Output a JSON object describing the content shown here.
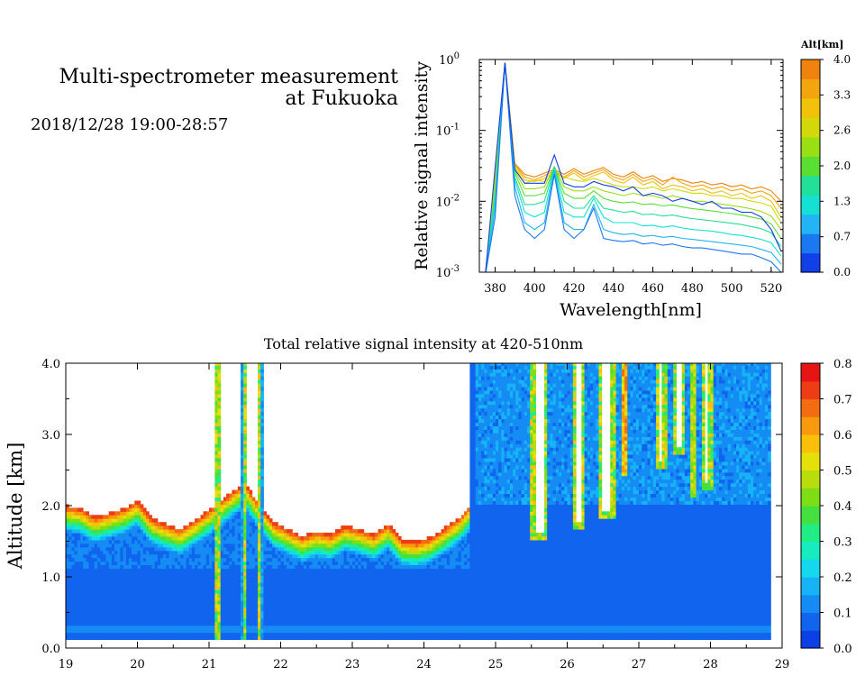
{
  "header": {
    "title_line1": "Multi-spectrometer measurement",
    "title_line2": "at Fukuoka",
    "date_range": "2018/12/28 19:00-28:57"
  },
  "chart_data": [
    {
      "type": "line",
      "xlabel": "Wavelength[nm]",
      "ylabel": "Relative signal intensity",
      "xlim": [
        372,
        526
      ],
      "ylim": [
        0.001,
        1
      ],
      "yscale": "log",
      "x_ticks": [
        "380",
        "400",
        "420",
        "440",
        "460",
        "480",
        "500",
        "520"
      ],
      "y_tick_mantissa": [
        "10",
        "10",
        "10",
        "10"
      ],
      "y_tick_exponent": [
        "-3",
        "-2",
        "-1",
        "0"
      ],
      "colorbar": {
        "title": "Alt[km]",
        "ticks": [
          "0.0",
          "0.7",
          "1.3",
          "2.0",
          "2.6",
          "3.3",
          "4.0"
        ],
        "colors": [
          "#1240e8",
          "#1a78f0",
          "#22b4f4",
          "#14e0d4",
          "#22e098",
          "#5ade32",
          "#9ade14",
          "#d2d80a",
          "#f0c20a",
          "#f4a40c",
          "#f0820e"
        ]
      },
      "x": [
        375,
        380,
        385,
        390,
        395,
        400,
        405,
        410,
        415,
        420,
        425,
        430,
        435,
        440,
        445,
        450,
        455,
        460,
        465,
        470,
        475,
        480,
        485,
        490,
        495,
        500,
        505,
        510,
        515,
        520,
        525
      ],
      "series": [
        {
          "color": "#1240e8",
          "values": [
            0.0009,
            0.03,
            0.9,
            0.028,
            0.018,
            0.018,
            0.018,
            0.045,
            0.018,
            0.016,
            0.016,
            0.019,
            0.017,
            0.016,
            0.014,
            0.016,
            0.012,
            0.013,
            0.012,
            0.01,
            0.011,
            0.01,
            0.009,
            0.01,
            0.008,
            0.008,
            0.007,
            0.007,
            0.006,
            0.004,
            0.002
          ]
        },
        {
          "color": "#1a78f0",
          "values": [
            0.0009,
            0.006,
            0.9,
            0.012,
            0.004,
            0.003,
            0.004,
            0.024,
            0.004,
            0.003,
            0.004,
            0.008,
            0.003,
            0.0028,
            0.0027,
            0.0028,
            0.0025,
            0.0026,
            0.0024,
            0.0025,
            0.0023,
            0.0022,
            0.0022,
            0.0021,
            0.002,
            0.0019,
            0.0018,
            0.0018,
            0.0016,
            0.0014,
            0.001
          ]
        },
        {
          "color": "#22b4f4",
          "values": [
            0.0009,
            0.008,
            0.9,
            0.016,
            0.005,
            0.004,
            0.005,
            0.027,
            0.005,
            0.004,
            0.004,
            0.009,
            0.004,
            0.0036,
            0.0034,
            0.0035,
            0.0032,
            0.0033,
            0.0031,
            0.0032,
            0.003,
            0.0029,
            0.0028,
            0.0027,
            0.0026,
            0.0025,
            0.0024,
            0.0023,
            0.0021,
            0.0019,
            0.0013
          ]
        },
        {
          "color": "#14e0d4",
          "values": [
            0.0009,
            0.01,
            0.9,
            0.02,
            0.007,
            0.006,
            0.007,
            0.029,
            0.007,
            0.006,
            0.006,
            0.011,
            0.006,
            0.005,
            0.005,
            0.005,
            0.0045,
            0.0046,
            0.0043,
            0.0045,
            0.0042,
            0.004,
            0.0039,
            0.0038,
            0.0036,
            0.0034,
            0.0033,
            0.0031,
            0.0029,
            0.0026,
            0.0017
          ]
        },
        {
          "color": "#22e098",
          "values": [
            0.0009,
            0.012,
            0.9,
            0.022,
            0.009,
            0.009,
            0.01,
            0.03,
            0.01,
            0.008,
            0.008,
            0.012,
            0.008,
            0.0075,
            0.007,
            0.0072,
            0.0065,
            0.0066,
            0.0062,
            0.0064,
            0.006,
            0.0057,
            0.0055,
            0.0053,
            0.0051,
            0.0049,
            0.0047,
            0.0044,
            0.0041,
            0.0036,
            0.0023
          ]
        },
        {
          "color": "#5ade32",
          "values": [
            0.0009,
            0.014,
            0.9,
            0.025,
            0.012,
            0.012,
            0.013,
            0.03,
            0.013,
            0.011,
            0.011,
            0.014,
            0.011,
            0.01,
            0.0095,
            0.0098,
            0.009,
            0.0092,
            0.0086,
            0.0089,
            0.0083,
            0.0079,
            0.0076,
            0.0073,
            0.007,
            0.0067,
            0.0064,
            0.006,
            0.0056,
            0.0048,
            0.003
          ]
        },
        {
          "color": "#9ade14",
          "values": [
            0.0009,
            0.016,
            0.9,
            0.027,
            0.015,
            0.015,
            0.016,
            0.031,
            0.016,
            0.014,
            0.014,
            0.016,
            0.014,
            0.013,
            0.012,
            0.013,
            0.012,
            0.012,
            0.011,
            0.012,
            0.011,
            0.01,
            0.01,
            0.0095,
            0.0091,
            0.0087,
            0.0083,
            0.0078,
            0.0072,
            0.0062,
            0.004
          ]
        },
        {
          "color": "#d2d80a",
          "values": [
            0.0009,
            0.018,
            0.9,
            0.03,
            0.018,
            0.02,
            0.019,
            0.025,
            0.022,
            0.02,
            0.019,
            0.021,
            0.019,
            0.017,
            0.016,
            0.016,
            0.015,
            0.016,
            0.014,
            0.015,
            0.014,
            0.013,
            0.013,
            0.012,
            0.012,
            0.011,
            0.011,
            0.01,
            0.0095,
            0.0085,
            0.005
          ]
        },
        {
          "color": "#f0c20a",
          "values": [
            0.0009,
            0.02,
            0.9,
            0.032,
            0.02,
            0.019,
            0.021,
            0.026,
            0.021,
            0.025,
            0.02,
            0.023,
            0.026,
            0.02,
            0.018,
            0.022,
            0.017,
            0.019,
            0.015,
            0.017,
            0.016,
            0.014,
            0.015,
            0.013,
            0.014,
            0.012,
            0.013,
            0.011,
            0.012,
            0.01,
            0.006
          ]
        },
        {
          "color": "#f4a40c",
          "values": [
            0.0009,
            0.022,
            0.9,
            0.033,
            0.022,
            0.02,
            0.023,
            0.027,
            0.022,
            0.027,
            0.022,
            0.025,
            0.028,
            0.022,
            0.02,
            0.024,
            0.019,
            0.021,
            0.017,
            0.022,
            0.018,
            0.016,
            0.017,
            0.015,
            0.016,
            0.014,
            0.015,
            0.013,
            0.014,
            0.012,
            0.008
          ]
        },
        {
          "color": "#f0820e",
          "values": [
            0.0009,
            0.024,
            0.9,
            0.034,
            0.024,
            0.022,
            0.025,
            0.028,
            0.024,
            0.029,
            0.024,
            0.027,
            0.03,
            0.024,
            0.022,
            0.026,
            0.021,
            0.023,
            0.019,
            0.021,
            0.02,
            0.018,
            0.019,
            0.017,
            0.018,
            0.016,
            0.017,
            0.015,
            0.016,
            0.014,
            0.01
          ]
        }
      ]
    },
    {
      "type": "heatmap",
      "title": "Total relative signal intensity at 420-510nm",
      "ylabel": "Altitude [km]",
      "xlim": [
        19,
        29
      ],
      "ylim": [
        0,
        4
      ],
      "x_ticks": [
        "19",
        "20",
        "21",
        "22",
        "23",
        "24",
        "25",
        "26",
        "27",
        "28",
        "29"
      ],
      "y_ticks": [
        "0.0",
        "1.0",
        "2.0",
        "3.0",
        "4.0"
      ],
      "data_end_time": 28.8,
      "colorbar": {
        "ticks": [
          "0.0",
          "0.1",
          "0.2",
          "0.3",
          "0.4",
          "0.5",
          "0.6",
          "0.7",
          "0.8"
        ],
        "range": [
          0,
          0.8
        ],
        "colors": [
          "#0a40e6",
          "#1064ee",
          "#148cf4",
          "#16b4f6",
          "#14d8ee",
          "#16ecc0",
          "#22ec84",
          "#44e040",
          "#7ede14",
          "#b8dc0c",
          "#e6e00a",
          "#f8c00a",
          "#f89a0e",
          "#f46c12",
          "#ee3c14",
          "#e61414"
        ]
      },
      "cloud_base_km": [
        [
          19.0,
          1.88
        ],
        [
          19.2,
          1.85
        ],
        [
          19.4,
          1.72
        ],
        [
          19.6,
          1.78
        ],
        [
          19.8,
          1.84
        ],
        [
          20.0,
          1.95
        ],
        [
          20.2,
          1.7
        ],
        [
          20.4,
          1.62
        ],
        [
          20.6,
          1.55
        ],
        [
          20.8,
          1.68
        ],
        [
          21.0,
          1.82
        ],
        [
          21.1,
          1.9
        ],
        [
          21.35,
          2.1
        ],
        [
          21.5,
          2.2
        ],
        [
          21.7,
          1.9
        ],
        [
          21.9,
          1.65
        ],
        [
          22.1,
          1.55
        ],
        [
          22.3,
          1.45
        ],
        [
          22.5,
          1.52
        ],
        [
          22.7,
          1.48
        ],
        [
          22.9,
          1.6
        ],
        [
          23.1,
          1.55
        ],
        [
          23.3,
          1.48
        ],
        [
          23.5,
          1.62
        ],
        [
          23.7,
          1.4
        ],
        [
          23.9,
          1.38
        ],
        [
          24.1,
          1.44
        ],
        [
          24.3,
          1.58
        ],
        [
          24.5,
          1.72
        ],
        [
          24.65,
          1.9
        ]
      ],
      "dry_plumes": [
        {
          "t": 25.6,
          "base_km": 1.6,
          "width": 0.12
        },
        {
          "t": 26.15,
          "base_km": 1.75,
          "width": 0.07
        },
        {
          "t": 26.55,
          "base_km": 1.9,
          "width": 0.12
        },
        {
          "t": 27.3,
          "base_km": 2.6,
          "width": 0.06
        },
        {
          "t": 27.55,
          "base_km": 2.8,
          "width": 0.06
        },
        {
          "t": 27.95,
          "base_km": 2.3,
          "width": 0.05
        }
      ],
      "bright_stripes": [
        {
          "t": 26.8,
          "base_km": 2.4,
          "width": 0.09,
          "value": 0.7
        },
        {
          "t": 27.75,
          "base_km": 2.1,
          "width": 0.08,
          "value": 0.55
        }
      ]
    }
  ]
}
